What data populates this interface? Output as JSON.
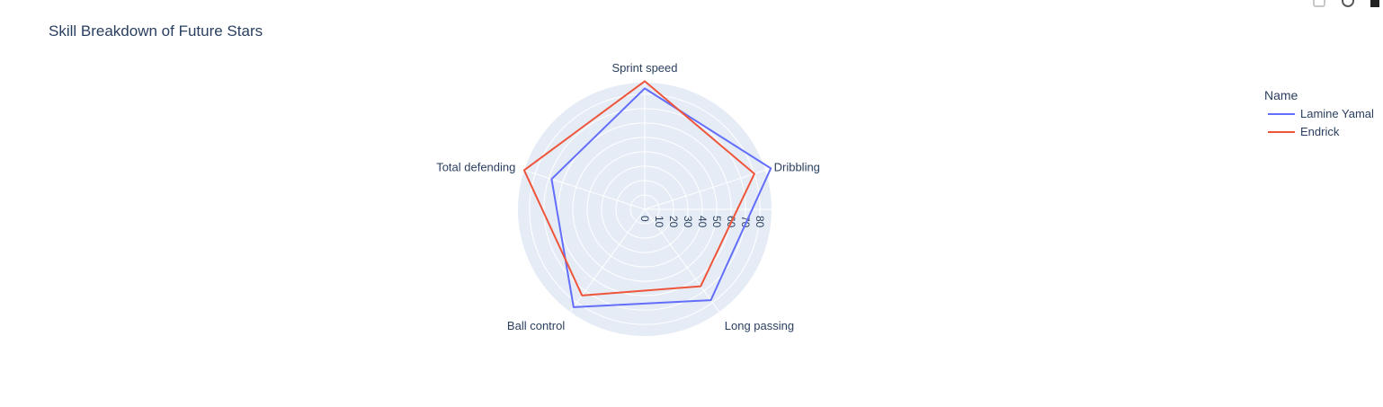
{
  "chart_data": {
    "type": "radar",
    "title": "Skill Breakdown of Future Stars",
    "categories": [
      "Sprint speed",
      "Dribbling",
      "Long passing",
      "Ball control",
      "Total defending"
    ],
    "radial_ticks": [
      "0",
      "10",
      "20",
      "30",
      "40",
      "50",
      "60",
      "70",
      "80"
    ],
    "radial_range": [
      0,
      88
    ],
    "grid": true,
    "legend": {
      "title": "Name",
      "position": "top-right"
    },
    "series": [
      {
        "name": "Lamine Yamal",
        "color": "#636efa",
        "values": [
          84,
          92,
          78,
          84,
          68
        ]
      },
      {
        "name": "Endrick",
        "color": "#ef553b",
        "values": [
          89,
          80,
          66,
          74,
          88
        ]
      }
    ]
  },
  "colors": {
    "polar_background": "#e5ecf6",
    "grid": "#ffffff",
    "text": "#2a3f5f"
  },
  "modebar": {
    "icons": [
      "camera-icon",
      "zoom-icon",
      "plotly-logo-icon"
    ]
  }
}
